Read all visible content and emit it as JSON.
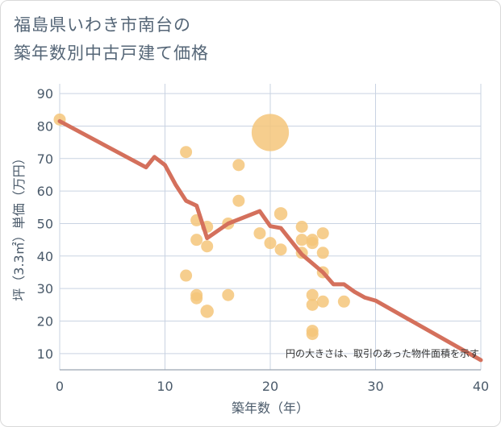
{
  "chart_data": {
    "type": "scatter",
    "title": [
      "福島県いわき市南台の",
      "築年数別中古戸建て価格"
    ],
    "xlabel": "築年数（年）",
    "ylabel": "坪（3.3㎡）単価（万円）",
    "note": "円の大きさは、取引のあった物件面積を示す",
    "xlim": [
      0,
      40
    ],
    "ylim": [
      5,
      93
    ],
    "x_ticks": [
      0,
      10,
      20,
      30,
      40
    ],
    "y_ticks": [
      10,
      20,
      30,
      40,
      50,
      60,
      70,
      80,
      90
    ],
    "colors": {
      "bubble": "#f5c67a",
      "line": "#d4705c",
      "grid": "#c9d3e2",
      "axis": "#9aa5b1"
    },
    "bubbles": [
      {
        "x": 0,
        "y": 82,
        "size": 1
      },
      {
        "x": 12,
        "y": 72,
        "size": 1
      },
      {
        "x": 12,
        "y": 34,
        "size": 1
      },
      {
        "x": 13,
        "y": 51,
        "size": 1
      },
      {
        "x": 13,
        "y": 45,
        "size": 1
      },
      {
        "x": 13,
        "y": 28,
        "size": 1
      },
      {
        "x": 13,
        "y": 27,
        "size": 1
      },
      {
        "x": 14,
        "y": 49,
        "size": 1
      },
      {
        "x": 14,
        "y": 43,
        "size": 1
      },
      {
        "x": 14,
        "y": 23,
        "size": 1.2
      },
      {
        "x": 16,
        "y": 50,
        "size": 1
      },
      {
        "x": 16,
        "y": 28,
        "size": 1
      },
      {
        "x": 17,
        "y": 68,
        "size": 1
      },
      {
        "x": 17,
        "y": 57,
        "size": 1
      },
      {
        "x": 19,
        "y": 47,
        "size": 1
      },
      {
        "x": 20,
        "y": 78,
        "size": 9.5
      },
      {
        "x": 20,
        "y": 44,
        "size": 1
      },
      {
        "x": 21,
        "y": 53,
        "size": 1.2
      },
      {
        "x": 21,
        "y": 42,
        "size": 1
      },
      {
        "x": 23,
        "y": 49,
        "size": 1
      },
      {
        "x": 23,
        "y": 45,
        "size": 1
      },
      {
        "x": 23,
        "y": 41,
        "size": 1
      },
      {
        "x": 24,
        "y": 45,
        "size": 1
      },
      {
        "x": 24,
        "y": 44,
        "size": 1
      },
      {
        "x": 24,
        "y": 28,
        "size": 1
      },
      {
        "x": 24,
        "y": 25,
        "size": 1
      },
      {
        "x": 24,
        "y": 17,
        "size": 1
      },
      {
        "x": 24,
        "y": 16,
        "size": 1
      },
      {
        "x": 25,
        "y": 47,
        "size": 1
      },
      {
        "x": 25,
        "y": 41,
        "size": 1
      },
      {
        "x": 25,
        "y": 35,
        "size": 1
      },
      {
        "x": 25,
        "y": 26,
        "size": 1
      },
      {
        "x": 27,
        "y": 26,
        "size": 1
      }
    ],
    "trend_line": {
      "x": [
        0,
        8.2,
        9,
        10,
        11,
        12,
        13,
        14,
        16,
        19,
        20,
        21,
        23,
        25,
        26,
        27,
        28,
        29,
        30,
        40
      ],
      "y": [
        81.5,
        67.3,
        70.5,
        68,
        62,
        57,
        55.5,
        45.5,
        50,
        53.8,
        49.2,
        48.6,
        40.5,
        35,
        31.3,
        31.3,
        29,
        27.2,
        26.3,
        8
      ]
    }
  }
}
